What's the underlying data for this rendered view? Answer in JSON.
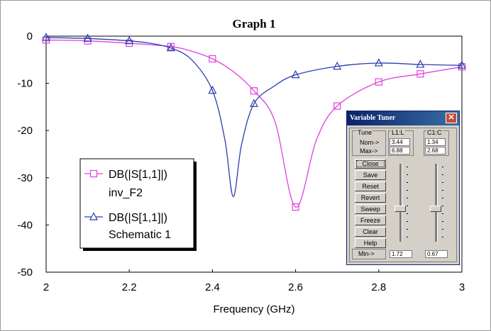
{
  "window": {
    "title": "Graph 1"
  },
  "chart_data": {
    "type": "line",
    "title": "Graph 1",
    "xlabel": "Frequency (GHz)",
    "ylabel": "",
    "xlim": [
      2,
      3
    ],
    "ylim": [
      -50,
      0
    ],
    "x_ticks": [
      "2",
      "2.2",
      "2.4",
      "2.6",
      "2.8",
      "3"
    ],
    "y_ticks": [
      "0",
      "-10",
      "-20",
      "-30",
      "-40",
      "-50"
    ],
    "grid": false,
    "legend_placement": "lower-left",
    "series": [
      {
        "name": "DB(|S[1,1]|)",
        "name_line2": "inv_F2",
        "color": "#e040e0",
        "marker": "square",
        "x": [
          2,
          2.1,
          2.2,
          2.3,
          2.35,
          2.4,
          2.45,
          2.5,
          2.55,
          2.6,
          2.65,
          2.7,
          2.8,
          2.9,
          3
        ],
        "y": [
          -0.8,
          -1,
          -1.5,
          -2.2,
          -3.2,
          -4.8,
          -7.5,
          -11.6,
          -18,
          -36.2,
          -22,
          -14.8,
          -9.7,
          -8,
          -6.5
        ],
        "marker_x": [
          2,
          2.1,
          2.2,
          2.3,
          2.4,
          2.5,
          2.6,
          2.7,
          2.8,
          2.9,
          3
        ],
        "marker_y": [
          -0.8,
          -1,
          -1.5,
          -2.2,
          -4.8,
          -11.6,
          -36.2,
          -14.8,
          -9.7,
          -8,
          -6.5
        ]
      },
      {
        "name": "DB(|S[1,1]|)",
        "name_line2": "Schematic 1",
        "color": "#2a3fb0",
        "marker": "triangle",
        "x": [
          2,
          2.1,
          2.2,
          2.25,
          2.3,
          2.35,
          2.4,
          2.43,
          2.45,
          2.47,
          2.5,
          2.55,
          2.6,
          2.7,
          2.8,
          2.9,
          3
        ],
        "y": [
          -0.3,
          -0.5,
          -1,
          -1.5,
          -2.5,
          -5,
          -11.5,
          -22,
          -34,
          -23,
          -14.3,
          -10.5,
          -8.2,
          -6.4,
          -5.7,
          -6,
          -6.2
        ],
        "marker_x": [
          2,
          2.1,
          2.2,
          2.3,
          2.4,
          2.5,
          2.6,
          2.7,
          2.8,
          2.9,
          3
        ],
        "marker_y": [
          -0.3,
          -0.5,
          -1,
          -2.5,
          -11.5,
          -14.3,
          -8.2,
          -6.4,
          -5.7,
          -6,
          -6.2
        ]
      }
    ]
  },
  "tuner": {
    "title": "Variable Tuner",
    "close_glyph": "✕",
    "tune_label": "Tune",
    "nom_label": "Nom->",
    "max_label": "Max->",
    "min_label": "Min->",
    "buttons": [
      "Close",
      "Save",
      "Reset",
      "Revert",
      "Sweep",
      "Freeze",
      "Clear",
      "Help"
    ],
    "vars": [
      {
        "name": "L1:L",
        "nom": "3.44",
        "max": "6.88",
        "min": "1.72",
        "level": 0.5
      },
      {
        "name": "C1:C",
        "nom": "1.34",
        "max": "2.68",
        "min": "0.67",
        "level": 0.5
      }
    ]
  }
}
